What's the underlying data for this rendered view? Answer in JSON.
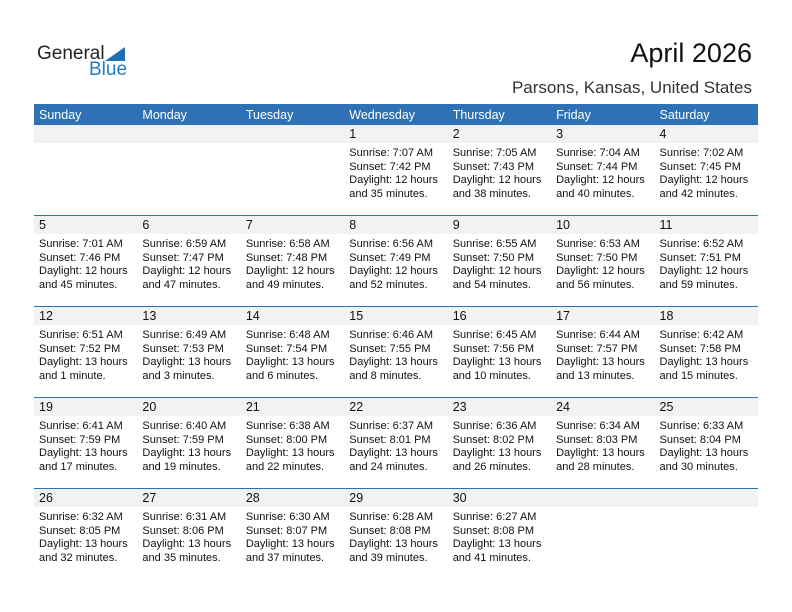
{
  "logo": {
    "line1": "General",
    "line2": "Blue"
  },
  "title": "April 2026",
  "location": "Parsons, Kansas, United States",
  "colors": {
    "header": "#2e72b5",
    "date_strip": "#f2f2f2",
    "logo_blue": "#1f7bc4"
  },
  "weekdays": [
    "Sunday",
    "Monday",
    "Tuesday",
    "Wednesday",
    "Thursday",
    "Friday",
    "Saturday"
  ],
  "weeks": [
    [
      null,
      null,
      null,
      {
        "day": "1",
        "sunrise": "Sunrise: 7:07 AM",
        "sunset": "Sunset: 7:42 PM",
        "daylight": "Daylight: 12 hours",
        "minutes": "and 35 minutes."
      },
      {
        "day": "2",
        "sunrise": "Sunrise: 7:05 AM",
        "sunset": "Sunset: 7:43 PM",
        "daylight": "Daylight: 12 hours",
        "minutes": "and 38 minutes."
      },
      {
        "day": "3",
        "sunrise": "Sunrise: 7:04 AM",
        "sunset": "Sunset: 7:44 PM",
        "daylight": "Daylight: 12 hours",
        "minutes": "and 40 minutes."
      },
      {
        "day": "4",
        "sunrise": "Sunrise: 7:02 AM",
        "sunset": "Sunset: 7:45 PM",
        "daylight": "Daylight: 12 hours",
        "minutes": "and 42 minutes."
      }
    ],
    [
      {
        "day": "5",
        "sunrise": "Sunrise: 7:01 AM",
        "sunset": "Sunset: 7:46 PM",
        "daylight": "Daylight: 12 hours",
        "minutes": "and 45 minutes."
      },
      {
        "day": "6",
        "sunrise": "Sunrise: 6:59 AM",
        "sunset": "Sunset: 7:47 PM",
        "daylight": "Daylight: 12 hours",
        "minutes": "and 47 minutes."
      },
      {
        "day": "7",
        "sunrise": "Sunrise: 6:58 AM",
        "sunset": "Sunset: 7:48 PM",
        "daylight": "Daylight: 12 hours",
        "minutes": "and 49 minutes."
      },
      {
        "day": "8",
        "sunrise": "Sunrise: 6:56 AM",
        "sunset": "Sunset: 7:49 PM",
        "daylight": "Daylight: 12 hours",
        "minutes": "and 52 minutes."
      },
      {
        "day": "9",
        "sunrise": "Sunrise: 6:55 AM",
        "sunset": "Sunset: 7:50 PM",
        "daylight": "Daylight: 12 hours",
        "minutes": "and 54 minutes."
      },
      {
        "day": "10",
        "sunrise": "Sunrise: 6:53 AM",
        "sunset": "Sunset: 7:50 PM",
        "daylight": "Daylight: 12 hours",
        "minutes": "and 56 minutes."
      },
      {
        "day": "11",
        "sunrise": "Sunrise: 6:52 AM",
        "sunset": "Sunset: 7:51 PM",
        "daylight": "Daylight: 12 hours",
        "minutes": "and 59 minutes."
      }
    ],
    [
      {
        "day": "12",
        "sunrise": "Sunrise: 6:51 AM",
        "sunset": "Sunset: 7:52 PM",
        "daylight": "Daylight: 13 hours",
        "minutes": "and 1 minute."
      },
      {
        "day": "13",
        "sunrise": "Sunrise: 6:49 AM",
        "sunset": "Sunset: 7:53 PM",
        "daylight": "Daylight: 13 hours",
        "minutes": "and 3 minutes."
      },
      {
        "day": "14",
        "sunrise": "Sunrise: 6:48 AM",
        "sunset": "Sunset: 7:54 PM",
        "daylight": "Daylight: 13 hours",
        "minutes": "and 6 minutes."
      },
      {
        "day": "15",
        "sunrise": "Sunrise: 6:46 AM",
        "sunset": "Sunset: 7:55 PM",
        "daylight": "Daylight: 13 hours",
        "minutes": "and 8 minutes."
      },
      {
        "day": "16",
        "sunrise": "Sunrise: 6:45 AM",
        "sunset": "Sunset: 7:56 PM",
        "daylight": "Daylight: 13 hours",
        "minutes": "and 10 minutes."
      },
      {
        "day": "17",
        "sunrise": "Sunrise: 6:44 AM",
        "sunset": "Sunset: 7:57 PM",
        "daylight": "Daylight: 13 hours",
        "minutes": "and 13 minutes."
      },
      {
        "day": "18",
        "sunrise": "Sunrise: 6:42 AM",
        "sunset": "Sunset: 7:58 PM",
        "daylight": "Daylight: 13 hours",
        "minutes": "and 15 minutes."
      }
    ],
    [
      {
        "day": "19",
        "sunrise": "Sunrise: 6:41 AM",
        "sunset": "Sunset: 7:59 PM",
        "daylight": "Daylight: 13 hours",
        "minutes": "and 17 minutes."
      },
      {
        "day": "20",
        "sunrise": "Sunrise: 6:40 AM",
        "sunset": "Sunset: 7:59 PM",
        "daylight": "Daylight: 13 hours",
        "minutes": "and 19 minutes."
      },
      {
        "day": "21",
        "sunrise": "Sunrise: 6:38 AM",
        "sunset": "Sunset: 8:00 PM",
        "daylight": "Daylight: 13 hours",
        "minutes": "and 22 minutes."
      },
      {
        "day": "22",
        "sunrise": "Sunrise: 6:37 AM",
        "sunset": "Sunset: 8:01 PM",
        "daylight": "Daylight: 13 hours",
        "minutes": "and 24 minutes."
      },
      {
        "day": "23",
        "sunrise": "Sunrise: 6:36 AM",
        "sunset": "Sunset: 8:02 PM",
        "daylight": "Daylight: 13 hours",
        "minutes": "and 26 minutes."
      },
      {
        "day": "24",
        "sunrise": "Sunrise: 6:34 AM",
        "sunset": "Sunset: 8:03 PM",
        "daylight": "Daylight: 13 hours",
        "minutes": "and 28 minutes."
      },
      {
        "day": "25",
        "sunrise": "Sunrise: 6:33 AM",
        "sunset": "Sunset: 8:04 PM",
        "daylight": "Daylight: 13 hours",
        "minutes": "and 30 minutes."
      }
    ],
    [
      {
        "day": "26",
        "sunrise": "Sunrise: 6:32 AM",
        "sunset": "Sunset: 8:05 PM",
        "daylight": "Daylight: 13 hours",
        "minutes": "and 32 minutes."
      },
      {
        "day": "27",
        "sunrise": "Sunrise: 6:31 AM",
        "sunset": "Sunset: 8:06 PM",
        "daylight": "Daylight: 13 hours",
        "minutes": "and 35 minutes."
      },
      {
        "day": "28",
        "sunrise": "Sunrise: 6:30 AM",
        "sunset": "Sunset: 8:07 PM",
        "daylight": "Daylight: 13 hours",
        "minutes": "and 37 minutes."
      },
      {
        "day": "29",
        "sunrise": "Sunrise: 6:28 AM",
        "sunset": "Sunset: 8:08 PM",
        "daylight": "Daylight: 13 hours",
        "minutes": "and 39 minutes."
      },
      {
        "day": "30",
        "sunrise": "Sunrise: 6:27 AM",
        "sunset": "Sunset: 8:08 PM",
        "daylight": "Daylight: 13 hours",
        "minutes": "and 41 minutes."
      },
      null,
      null
    ]
  ]
}
